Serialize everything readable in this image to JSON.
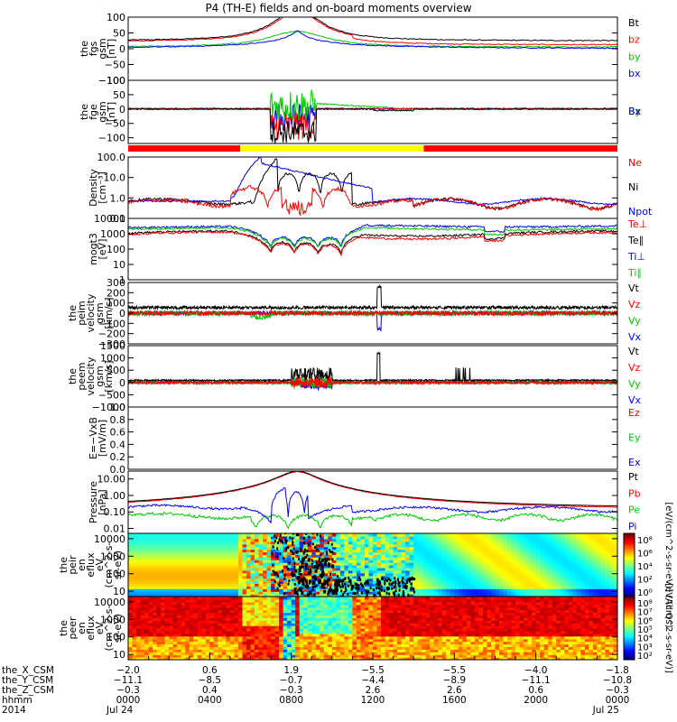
{
  "title": "P4 (TH-E) fields and on-board moments overview",
  "colors": {
    "black": "#000000",
    "red": "#ff0000",
    "green": "#00c800",
    "blue": "#0000ff",
    "yellow": "#ffff00"
  },
  "chart_data": {
    "type": "line",
    "x_range": [
      "2014-07-24 00:00",
      "2014-07-25 00:00"
    ],
    "status_bar": [
      {
        "from": "00:00",
        "to": "05:30",
        "color": "red"
      },
      {
        "from": "05:30",
        "to": "14:30",
        "color": "yellow"
      },
      {
        "from": "14:30",
        "to": "24:00",
        "color": "red"
      }
    ],
    "panels": [
      {
        "id": "fgs",
        "ylabel": [
          "the",
          "fgs",
          "gsm",
          "[nT]"
        ],
        "scale": "linear",
        "ylim": [
          -100,
          100
        ],
        "ticks": [
          "100",
          "50",
          "0",
          "−50",
          "−100"
        ],
        "legend": [
          {
            "name": "Bt",
            "color": "black"
          },
          {
            "name": "bz",
            "color": "red"
          },
          {
            "name": "by",
            "color": "green"
          },
          {
            "name": "bx",
            "color": "blue"
          }
        ]
      },
      {
        "id": "fge",
        "ylabel": [
          "the",
          "fge",
          "gsm",
          "[nT]"
        ],
        "scale": "linear",
        "ylim": [
          -120,
          100
        ],
        "ticks": [
          "100",
          "50",
          "0",
          "−50",
          "−100"
        ],
        "legend": [
          {
            "name": "Bz",
            "color": "red"
          },
          {
            "name": "By",
            "color": "green"
          },
          {
            "name": "Bx",
            "color": "blue"
          }
        ]
      },
      {
        "id": "density",
        "ylabel": [
          "Density",
          "[cm⁻³]"
        ],
        "scale": "log",
        "ylim": [
          0.1,
          100
        ],
        "ticks": [
          "100.0",
          "10.0",
          "1.0",
          "0.1"
        ],
        "legend": [
          {
            "name": "Ne",
            "color": "red"
          },
          {
            "name": "Ni",
            "color": "black"
          },
          {
            "name": "Npot",
            "color": "blue"
          }
        ]
      },
      {
        "id": "temperature",
        "ylabel": [
          "mogt3",
          "[eV]"
        ],
        "scale": "log",
        "ylim": [
          1,
          10000
        ],
        "ticks": [
          "10000",
          "1000",
          "100",
          "10",
          "1"
        ],
        "legend": [
          {
            "name": "Te⊥",
            "color": "red"
          },
          {
            "name": "Te∥",
            "color": "black"
          },
          {
            "name": "Ti⊥",
            "color": "blue"
          },
          {
            "name": "Ti∥",
            "color": "green"
          }
        ]
      },
      {
        "id": "ion_velocity",
        "ylabel": [
          "the",
          "peim",
          "velocity",
          "gsm",
          "[km/s]"
        ],
        "scale": "linear",
        "ylim": [
          -300,
          300
        ],
        "ticks": [
          "300",
          "200",
          "100",
          "0",
          "−100",
          "−200",
          "−300"
        ],
        "legend": [
          {
            "name": "Vt",
            "color": "black"
          },
          {
            "name": "Vz",
            "color": "red"
          },
          {
            "name": "Vy",
            "color": "green"
          },
          {
            "name": "Vx",
            "color": "blue"
          }
        ]
      },
      {
        "id": "electron_velocity",
        "ylabel": [
          "the",
          "peem",
          "velocity",
          "gsm",
          "[km/s]"
        ],
        "scale": "linear",
        "ylim": [
          -1000,
          1500
        ],
        "ticks": [
          "1500",
          "1000",
          "500",
          "0",
          "−500",
          "−1000"
        ],
        "legend": [
          {
            "name": "Vt",
            "color": "black"
          },
          {
            "name": "Vz",
            "color": "red"
          },
          {
            "name": "Vy",
            "color": "green"
          },
          {
            "name": "Vx",
            "color": "blue"
          }
        ]
      },
      {
        "id": "efield",
        "ylabel": [
          "E=−VxB",
          "[mV/m]"
        ],
        "scale": "linear",
        "ylim": [
          0,
          1
        ],
        "ticks": [
          "1.0",
          "0.8",
          "0.6",
          "0.4",
          "0.2",
          "0.0"
        ],
        "legend": [
          {
            "name": "Ez",
            "color": "red"
          },
          {
            "name": "Ey",
            "color": "green"
          },
          {
            "name": "Ex",
            "color": "blue"
          }
        ]
      },
      {
        "id": "pressure",
        "ylabel": [
          "Pressure",
          "[nPa]"
        ],
        "scale": "log",
        "ylim": [
          0.005,
          30
        ],
        "ticks": [
          "10.00",
          "1.00",
          "0.10",
          "0.01"
        ],
        "legend": [
          {
            "name": "Pt",
            "color": "black"
          },
          {
            "name": "Pb",
            "color": "red"
          },
          {
            "name": "Pe",
            "color": "green"
          },
          {
            "name": "Pi",
            "color": "blue"
          }
        ]
      },
      {
        "id": "ion_spectrogram",
        "ylabel": [
          "the",
          "peir",
          "en",
          "eflux",
          "eV",
          "(cm^2-s-",
          "sr-eV)"
        ],
        "scale": "log",
        "ylim": [
          5,
          20000
        ],
        "ticks": [
          "10000",
          "1000",
          "100",
          "10"
        ],
        "colorbar": {
          "label": "[eV/(cm^2-s-sr-eV)] (All Qs)",
          "ticks": [
            "10⁸",
            "10⁶",
            "10⁴",
            "10²",
            "10⁰"
          ]
        }
      },
      {
        "id": "electron_spectrogram",
        "ylabel": [
          "the",
          "peer",
          "en",
          "eflux",
          "eV",
          "(cm^2-s-",
          "sr-eV)"
        ],
        "scale": "log",
        "ylim": [
          5,
          20000
        ],
        "ticks": [
          "10000",
          "1000",
          "100",
          "10"
        ],
        "colorbar": {
          "label": "[eV/(cm^2-s-sr-eV)]",
          "ticks": [
            "10⁸",
            "10⁷",
            "10⁶",
            "10⁵",
            "10⁴",
            "10³",
            "10²"
          ]
        }
      }
    ],
    "x_axis": {
      "rows": [
        {
          "label": "the_X_CSM",
          "values": [
            "−2.0",
            "0.6",
            "1.9",
            "−5.5",
            "−5.5",
            "−4.0",
            "−1.8"
          ]
        },
        {
          "label": "the_Y_CSM",
          "values": [
            "−11.1",
            "−8.5",
            "−0.7",
            "−4.4",
            "−8.9",
            "−11.1",
            "−10.8"
          ]
        },
        {
          "label": "the_Z_CSM",
          "values": [
            "−0.3",
            "0.4",
            "−0.3",
            "2.6",
            "2.6",
            "0.6",
            "−0.3"
          ]
        },
        {
          "label": "hhmm",
          "values": [
            "0000",
            "0400",
            "0800",
            "1200",
            "1600",
            "2000",
            "0000"
          ]
        },
        {
          "label": "2014",
          "values": [
            "Jul 24",
            "",
            "",
            "",
            "",
            "",
            "Jul 25"
          ]
        }
      ]
    }
  }
}
